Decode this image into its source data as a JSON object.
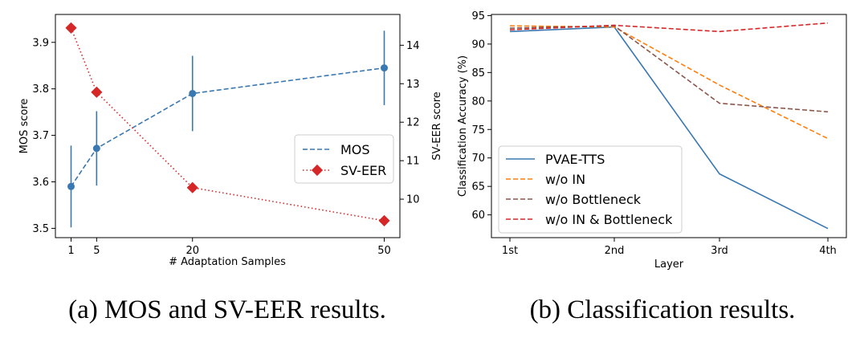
{
  "chart_data": [
    {
      "id": "a",
      "type": "line",
      "caption": "(a)  MOS and SV-EER results.",
      "xlabel": "# Adaptation Samples",
      "ylabel_left": "MOS score",
      "ylabel_right": "SV-EER score",
      "x": [
        1,
        5,
        20,
        50
      ],
      "xlim": [
        -1.45,
        52.45
      ],
      "xticks": [
        "1",
        "5",
        "20",
        "50"
      ],
      "ylim_left": [
        3.48,
        3.96
      ],
      "yticks_left": [
        "3.5",
        "3.6",
        "3.7",
        "3.8",
        "3.9"
      ],
      "ylim_right": [
        9.0,
        14.8
      ],
      "yticks_right": [
        "10",
        "11",
        "12",
        "13",
        "14"
      ],
      "series": [
        {
          "name": "MOS",
          "axis": "left",
          "color": "#3a78b1",
          "style": "dashed",
          "marker": "circle",
          "values": [
            3.59,
            3.672,
            3.79,
            3.845
          ],
          "error": [
            0.088,
            0.08,
            0.081,
            0.08
          ]
        },
        {
          "name": "SV-EER",
          "axis": "right",
          "color": "#d62728",
          "style": "dotted",
          "marker": "diamond",
          "values": [
            14.45,
            12.78,
            10.3,
            9.44
          ]
        }
      ],
      "legend": [
        "MOS",
        "SV-EER"
      ],
      "legend_position": "center-right"
    },
    {
      "id": "b",
      "type": "line",
      "caption": "(b)  Classification results.",
      "xlabel": "Layer",
      "ylabel": "Classification Accuracy (%)",
      "categories": [
        "1st",
        "2nd",
        "3rd",
        "4th"
      ],
      "ylim": [
        56,
        95.2
      ],
      "yticks": [
        "60",
        "65",
        "70",
        "75",
        "80",
        "85",
        "90",
        "95"
      ],
      "series": [
        {
          "name": "PVAE-TTS",
          "color": "#3a78b1",
          "style": "solid",
          "values": [
            92.2,
            93.0,
            67.2,
            57.6
          ]
        },
        {
          "name": "w/o IN",
          "color": "#ff7f0e",
          "style": "dashed",
          "values": [
            93.2,
            93.0,
            82.8,
            73.4
          ]
        },
        {
          "name": "w/o Bottleneck",
          "color": "#8c564b",
          "style": "dashed",
          "values": [
            92.8,
            93.2,
            79.6,
            78.1
          ]
        },
        {
          "name": "w/o IN & Bottleneck",
          "color": "#d62728",
          "style": "dashed",
          "values": [
            92.5,
            93.3,
            92.2,
            93.7
          ]
        }
      ],
      "legend": [
        "PVAE-TTS",
        "w/o IN",
        "w/o Bottleneck",
        "w/o IN & Bottleneck"
      ],
      "legend_position": "lower-left"
    }
  ]
}
